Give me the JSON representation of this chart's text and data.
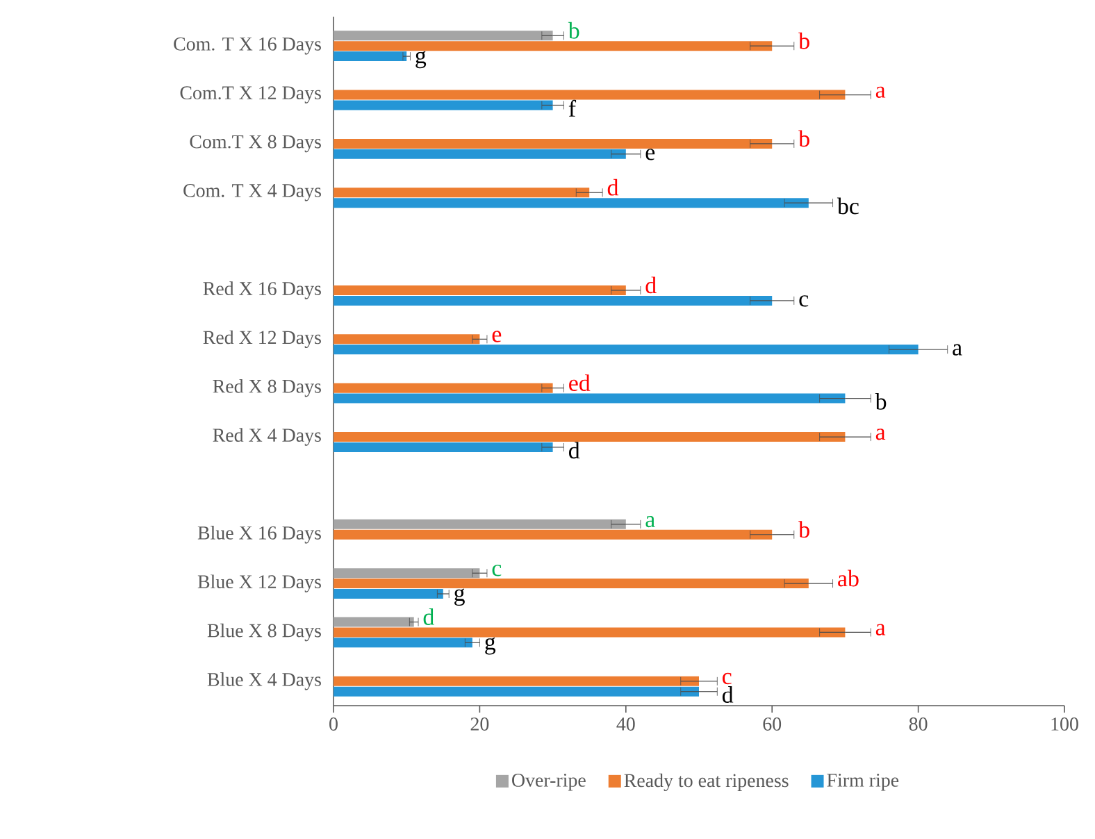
{
  "chart_data": {
    "type": "bar",
    "orientation": "horizontal",
    "categories": [
      "Com. T X 16 Days",
      "Com.T X 12 Days",
      "Com.T X 8 Days",
      "Com. T X 4 Days",
      null,
      "Red X 16 Days",
      "Red X 12 Days",
      "Red X 8 Days",
      "Red X 4 Days",
      null,
      "Blue X 16 Days",
      "Blue X 12 Days",
      "Blue X 8 Days",
      "Blue X 4 Days"
    ],
    "series": [
      {
        "name": "Over-ripe",
        "color": "#a5a5a5",
        "values": [
          30,
          null,
          null,
          null,
          null,
          null,
          null,
          null,
          null,
          null,
          40,
          20,
          11,
          null
        ],
        "errors": [
          1.5,
          null,
          null,
          null,
          null,
          null,
          null,
          null,
          null,
          null,
          2,
          1,
          0.6,
          null
        ],
        "value_labels": [
          "b",
          null,
          null,
          null,
          null,
          null,
          null,
          null,
          null,
          null,
          "a",
          "c",
          "d",
          null
        ]
      },
      {
        "name": "Ready to eat ripeness",
        "color": "#ed7d31",
        "values": [
          60,
          70,
          60,
          35,
          null,
          40,
          20,
          30,
          70,
          null,
          60,
          65,
          70,
          50
        ],
        "errors": [
          3,
          3.5,
          3,
          1.8,
          null,
          2,
          1,
          1.5,
          3.5,
          null,
          3,
          3.3,
          3.5,
          2.5
        ],
        "value_labels": [
          "b",
          "a",
          "b",
          "d",
          null,
          "d",
          "e",
          "ed",
          "a",
          null,
          "b",
          "ab",
          "a",
          "c"
        ]
      },
      {
        "name": "Firm ripe",
        "color": "#2596d6",
        "values": [
          10,
          30,
          40,
          65,
          null,
          60,
          80,
          70,
          30,
          null,
          null,
          15,
          19,
          50
        ],
        "errors": [
          0.5,
          1.5,
          2,
          3.3,
          null,
          3,
          4,
          3.5,
          1.5,
          null,
          null,
          0.8,
          1,
          2.5
        ],
        "value_labels": [
          "g",
          "f",
          "e",
          "bc",
          null,
          "c",
          "a",
          "b",
          "d",
          null,
          null,
          "g",
          "g",
          "d"
        ]
      }
    ],
    "xlim": [
      0,
      100
    ],
    "xticks": [
      0,
      20,
      40,
      60,
      80,
      100
    ],
    "legend": "bottom"
  }
}
